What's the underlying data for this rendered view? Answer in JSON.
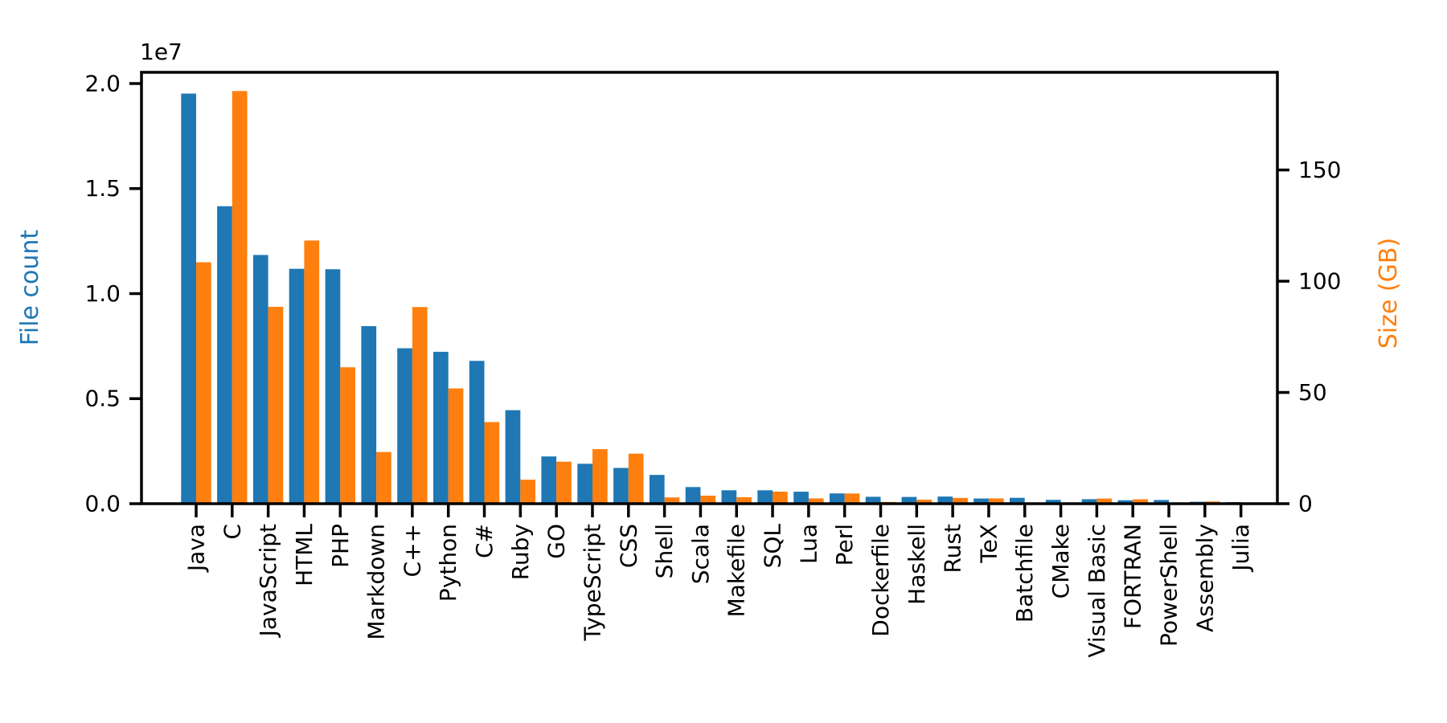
{
  "figure": {
    "background": "#ffffff",
    "plot_border_color": "#000000"
  },
  "chart_data": {
    "type": "bar",
    "title": "",
    "xlabel": "",
    "left_ylabel": "File count",
    "right_ylabel": "Size (GB)",
    "offset_text": "1e7",
    "grid": false,
    "legend": "none",
    "left_ylim": [
      0,
      20535000
    ],
    "right_ylim": [
      0,
      193.9
    ],
    "left_yticks": [
      0,
      5000000,
      10000000,
      15000000,
      20000000
    ],
    "left_ytick_labels": [
      "0.0",
      "0.5",
      "1.0",
      "1.5",
      "2.0"
    ],
    "right_yticks": [
      0,
      50,
      100,
      150
    ],
    "right_ytick_labels": [
      "0",
      "50",
      "100",
      "150"
    ],
    "categories": [
      "Java",
      "C",
      "JavaScript",
      "HTML",
      "PHP",
      "Markdown",
      "C++",
      "Python",
      "C#",
      "Ruby",
      "GO",
      "TypeScript",
      "CSS",
      "Shell",
      "Scala",
      "Makefile",
      "SQL",
      "Lua",
      "Perl",
      "Dockerfile",
      "Haskell",
      "Rust",
      "TeX",
      "Batchfile",
      "CMake",
      "Visual Basic",
      "FORTRAN",
      "PowerShell",
      "Assembly",
      "Julia"
    ],
    "series": [
      {
        "name": "File count",
        "axis": "left",
        "color": "#1f77b4",
        "values": [
          19520000,
          14160000,
          11840000,
          11180000,
          11160000,
          8450000,
          7400000,
          7230000,
          6800000,
          4450000,
          2250000,
          1900000,
          1700000,
          1370000,
          790000,
          640000,
          640000,
          570000,
          490000,
          330000,
          320000,
          340000,
          250000,
          280000,
          185000,
          215000,
          165000,
          175000,
          90000,
          75000
        ]
      },
      {
        "name": "Size (GB)",
        "axis": "right",
        "color": "#ff7f0e",
        "values": [
          108.5,
          185.5,
          88.5,
          118.3,
          61.3,
          23.2,
          88.4,
          51.8,
          36.7,
          10.8,
          18.9,
          24.5,
          22.5,
          2.8,
          3.6,
          2.9,
          5.4,
          2.4,
          4.6,
          0.8,
          1.8,
          2.6,
          2.4,
          0.3,
          0.3,
          2.3,
          2.0,
          0.3,
          1.0,
          0.2
        ]
      }
    ]
  }
}
